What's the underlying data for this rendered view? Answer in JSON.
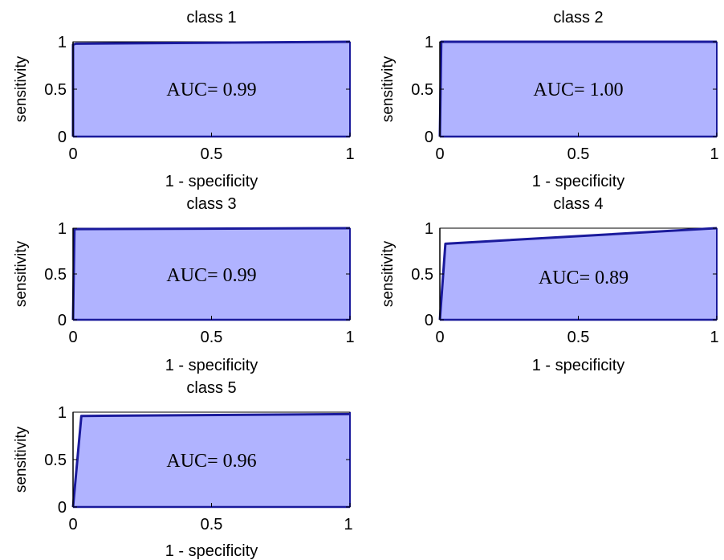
{
  "panel_texts": [
    {
      "title": "class 1",
      "auc_prefix": "AUC=",
      "auc_value": "0.99",
      "xlabel": "1 - specificity",
      "ylabel": "sensitivity"
    },
    {
      "title": "class 2",
      "auc_prefix": "AUC=",
      "auc_value": "1.00",
      "xlabel": "1 - specificity",
      "ylabel": "sensitivity"
    },
    {
      "title": "class 3",
      "auc_prefix": "AUC=",
      "auc_value": "0.99",
      "xlabel": "1 - specificity",
      "ylabel": "sensitivity"
    },
    {
      "title": "class 4",
      "auc_prefix": "AUC=",
      "auc_value": "0.89",
      "xlabel": "1 - specificity",
      "ylabel": "sensitivity"
    },
    {
      "title": "class 5",
      "auc_prefix": "AUC=",
      "auc_value": "0.96",
      "xlabel": "1 - specificity",
      "ylabel": "sensitivity"
    }
  ],
  "colors": {
    "fill": "#b0b3ff",
    "curve": "#1a1a9c",
    "axis": "#000000"
  },
  "chart_data": [
    {
      "type": "area",
      "title": "class 1",
      "xlabel": "1 - specificity",
      "ylabel": "sensitivity",
      "xlim": [
        0,
        1
      ],
      "ylim": [
        0,
        1
      ],
      "xticks": [
        "0",
        "0.5",
        "1"
      ],
      "yticks": [
        "0",
        "0.5",
        "1"
      ],
      "annotation": "AUC= 0.99",
      "series": [
        {
          "x": [
            0,
            0,
            0.01,
            1
          ],
          "y": [
            0,
            0.97,
            0.98,
            1
          ]
        }
      ]
    },
    {
      "type": "area",
      "title": "class 2",
      "xlabel": "1 - specificity",
      "ylabel": "sensitivity",
      "xlim": [
        0,
        1
      ],
      "ylim": [
        0,
        1
      ],
      "xticks": [
        "0",
        "0.5",
        "1"
      ],
      "yticks": [
        "0",
        "0.5",
        "1"
      ],
      "annotation": "AUC= 1.00",
      "series": [
        {
          "x": [
            0,
            0.005,
            0.01,
            1
          ],
          "y": [
            0,
            1,
            1,
            1
          ]
        }
      ]
    },
    {
      "type": "area",
      "title": "class 3",
      "xlabel": "1 - specificity",
      "ylabel": "sensitivity",
      "xlim": [
        0,
        1
      ],
      "ylim": [
        0,
        1
      ],
      "xticks": [
        "0",
        "0.5",
        "1"
      ],
      "yticks": [
        "0",
        "0.5",
        "1"
      ],
      "annotation": "AUC= 0.99",
      "series": [
        {
          "x": [
            0,
            0.005,
            1
          ],
          "y": [
            0,
            0.99,
            1
          ]
        }
      ]
    },
    {
      "type": "area",
      "title": "class 4",
      "xlabel": "1 - specificity",
      "ylabel": "sensitivity",
      "xlim": [
        0,
        1
      ],
      "ylim": [
        0,
        1
      ],
      "xticks": [
        "0",
        "0.5",
        "1"
      ],
      "yticks": [
        "0",
        "0.5",
        "1"
      ],
      "annotation": "AUC= 0.89",
      "series": [
        {
          "x": [
            0,
            0.02,
            1
          ],
          "y": [
            0,
            0.83,
            1
          ]
        }
      ]
    },
    {
      "type": "area",
      "title": "class 5",
      "xlabel": "1 - specificity",
      "ylabel": "sensitivity",
      "xlim": [
        0,
        1
      ],
      "ylim": [
        0,
        1
      ],
      "xticks": [
        "0",
        "0.5",
        "1"
      ],
      "yticks": [
        "0",
        "0.5",
        "1"
      ],
      "annotation": "AUC= 0.96",
      "series": [
        {
          "x": [
            0,
            0.03,
            1
          ],
          "y": [
            0,
            0.96,
            0.98
          ]
        }
      ]
    }
  ]
}
